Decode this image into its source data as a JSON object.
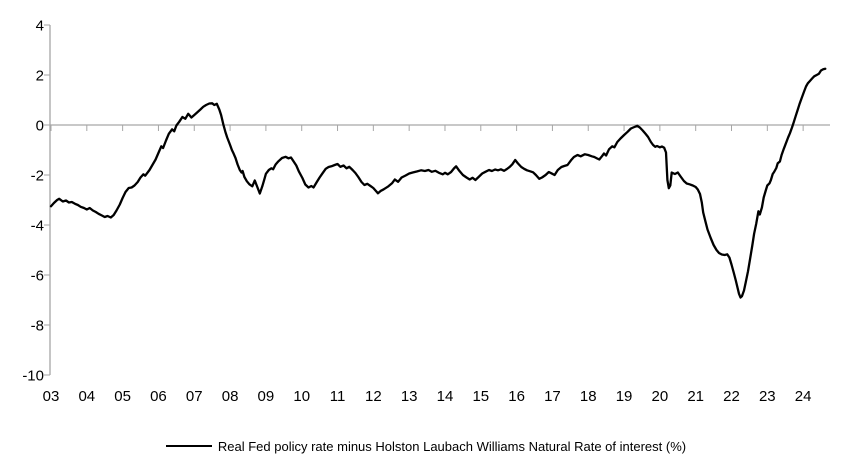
{
  "chart_data": {
    "type": "line",
    "title": "",
    "legend_position": "bottom",
    "grid": false,
    "zero_line": true,
    "colors": {
      "series": "#000000",
      "axis": "#a6a6a6",
      "tick_text": "#000000",
      "background": "#ffffff"
    },
    "x_axis": {
      "range": [
        2003,
        2024.75
      ],
      "tick_years": [
        2003,
        2004,
        2005,
        2006,
        2007,
        2008,
        2009,
        2010,
        2011,
        2012,
        2013,
        2014,
        2015,
        2016,
        2017,
        2018,
        2019,
        2020,
        2021,
        2022,
        2023,
        2024
      ],
      "tick_labels": [
        "03",
        "04",
        "05",
        "06",
        "07",
        "08",
        "09",
        "10",
        "11",
        "12",
        "13",
        "14",
        "15",
        "16",
        "17",
        "18",
        "19",
        "20",
        "21",
        "22",
        "23",
        "24"
      ]
    },
    "y_axis": {
      "range": [
        -10,
        4
      ],
      "tick_values": [
        4,
        2,
        0,
        -2,
        -4,
        -6,
        -8,
        -10
      ],
      "tick_labels": [
        "4",
        "2",
        "0",
        "-2",
        "-4",
        "-6",
        "-8",
        "-10"
      ]
    },
    "series": [
      {
        "name": "Real Fed policy rate minus Holston Laubach Williams Natural Rate of interest (%)",
        "color": "#000000",
        "points": [
          [
            2003.0,
            -3.25
          ],
          [
            2003.08,
            -3.12
          ],
          [
            2003.17,
            -3.0
          ],
          [
            2003.23,
            -2.95
          ],
          [
            2003.33,
            -3.06
          ],
          [
            2003.42,
            -3.02
          ],
          [
            2003.5,
            -3.1
          ],
          [
            2003.58,
            -3.08
          ],
          [
            2003.67,
            -3.15
          ],
          [
            2003.75,
            -3.2
          ],
          [
            2003.83,
            -3.27
          ],
          [
            2003.92,
            -3.32
          ],
          [
            2004.0,
            -3.38
          ],
          [
            2004.08,
            -3.32
          ],
          [
            2004.17,
            -3.42
          ],
          [
            2004.25,
            -3.48
          ],
          [
            2004.33,
            -3.55
          ],
          [
            2004.42,
            -3.62
          ],
          [
            2004.5,
            -3.68
          ],
          [
            2004.58,
            -3.64
          ],
          [
            2004.67,
            -3.7
          ],
          [
            2004.75,
            -3.6
          ],
          [
            2004.83,
            -3.42
          ],
          [
            2004.92,
            -3.18
          ],
          [
            2005.0,
            -2.92
          ],
          [
            2005.08,
            -2.68
          ],
          [
            2005.17,
            -2.52
          ],
          [
            2005.25,
            -2.5
          ],
          [
            2005.33,
            -2.42
          ],
          [
            2005.42,
            -2.28
          ],
          [
            2005.5,
            -2.1
          ],
          [
            2005.58,
            -1.97
          ],
          [
            2005.63,
            -2.03
          ],
          [
            2005.75,
            -1.8
          ],
          [
            2005.83,
            -1.6
          ],
          [
            2005.92,
            -1.38
          ],
          [
            2006.0,
            -1.12
          ],
          [
            2006.08,
            -0.85
          ],
          [
            2006.13,
            -0.92
          ],
          [
            2006.21,
            -0.62
          ],
          [
            2006.29,
            -0.35
          ],
          [
            2006.38,
            -0.17
          ],
          [
            2006.44,
            -0.25
          ],
          [
            2006.5,
            -0.02
          ],
          [
            2006.58,
            0.13
          ],
          [
            2006.67,
            0.32
          ],
          [
            2006.75,
            0.25
          ],
          [
            2006.83,
            0.45
          ],
          [
            2006.92,
            0.3
          ],
          [
            2007.0,
            0.4
          ],
          [
            2007.08,
            0.5
          ],
          [
            2007.17,
            0.62
          ],
          [
            2007.25,
            0.73
          ],
          [
            2007.33,
            0.8
          ],
          [
            2007.42,
            0.86
          ],
          [
            2007.5,
            0.87
          ],
          [
            2007.56,
            0.8
          ],
          [
            2007.63,
            0.85
          ],
          [
            2007.7,
            0.62
          ],
          [
            2007.75,
            0.4
          ],
          [
            2007.81,
            0.03
          ],
          [
            2007.87,
            -0.28
          ],
          [
            2007.92,
            -0.5
          ],
          [
            2008.0,
            -0.8
          ],
          [
            2008.05,
            -1.0
          ],
          [
            2008.1,
            -1.15
          ],
          [
            2008.15,
            -1.32
          ],
          [
            2008.21,
            -1.58
          ],
          [
            2008.27,
            -1.8
          ],
          [
            2008.32,
            -1.9
          ],
          [
            2008.35,
            -1.84
          ],
          [
            2008.4,
            -2.08
          ],
          [
            2008.47,
            -2.25
          ],
          [
            2008.54,
            -2.37
          ],
          [
            2008.62,
            -2.45
          ],
          [
            2008.69,
            -2.22
          ],
          [
            2008.76,
            -2.48
          ],
          [
            2008.83,
            -2.74
          ],
          [
            2008.9,
            -2.45
          ],
          [
            2008.96,
            -2.15
          ],
          [
            2009.0,
            -1.95
          ],
          [
            2009.08,
            -1.8
          ],
          [
            2009.15,
            -1.73
          ],
          [
            2009.2,
            -1.77
          ],
          [
            2009.27,
            -1.58
          ],
          [
            2009.35,
            -1.45
          ],
          [
            2009.45,
            -1.32
          ],
          [
            2009.55,
            -1.27
          ],
          [
            2009.63,
            -1.33
          ],
          [
            2009.7,
            -1.3
          ],
          [
            2009.77,
            -1.45
          ],
          [
            2009.85,
            -1.62
          ],
          [
            2009.92,
            -1.85
          ],
          [
            2010.02,
            -2.12
          ],
          [
            2010.1,
            -2.38
          ],
          [
            2010.19,
            -2.5
          ],
          [
            2010.27,
            -2.44
          ],
          [
            2010.33,
            -2.5
          ],
          [
            2010.42,
            -2.28
          ],
          [
            2010.5,
            -2.1
          ],
          [
            2010.58,
            -1.93
          ],
          [
            2010.67,
            -1.75
          ],
          [
            2010.75,
            -1.68
          ],
          [
            2010.83,
            -1.65
          ],
          [
            2010.92,
            -1.6
          ],
          [
            2011.0,
            -1.56
          ],
          [
            2011.08,
            -1.67
          ],
          [
            2011.17,
            -1.62
          ],
          [
            2011.25,
            -1.73
          ],
          [
            2011.33,
            -1.67
          ],
          [
            2011.42,
            -1.8
          ],
          [
            2011.5,
            -1.92
          ],
          [
            2011.58,
            -2.08
          ],
          [
            2011.67,
            -2.28
          ],
          [
            2011.75,
            -2.4
          ],
          [
            2011.83,
            -2.35
          ],
          [
            2011.92,
            -2.44
          ],
          [
            2012.0,
            -2.52
          ],
          [
            2012.06,
            -2.62
          ],
          [
            2012.13,
            -2.73
          ],
          [
            2012.21,
            -2.63
          ],
          [
            2012.29,
            -2.57
          ],
          [
            2012.42,
            -2.45
          ],
          [
            2012.52,
            -2.33
          ],
          [
            2012.6,
            -2.18
          ],
          [
            2012.69,
            -2.27
          ],
          [
            2012.79,
            -2.1
          ],
          [
            2012.9,
            -2.02
          ],
          [
            2013.0,
            -1.94
          ],
          [
            2013.1,
            -1.9
          ],
          [
            2013.21,
            -1.86
          ],
          [
            2013.33,
            -1.81
          ],
          [
            2013.44,
            -1.84
          ],
          [
            2013.54,
            -1.8
          ],
          [
            2013.63,
            -1.87
          ],
          [
            2013.73,
            -1.83
          ],
          [
            2013.83,
            -1.91
          ],
          [
            2013.94,
            -1.97
          ],
          [
            2014.0,
            -1.91
          ],
          [
            2014.08,
            -1.97
          ],
          [
            2014.17,
            -1.88
          ],
          [
            2014.25,
            -1.74
          ],
          [
            2014.31,
            -1.65
          ],
          [
            2014.4,
            -1.83
          ],
          [
            2014.5,
            -2.0
          ],
          [
            2014.6,
            -2.1
          ],
          [
            2014.69,
            -2.18
          ],
          [
            2014.77,
            -2.11
          ],
          [
            2014.85,
            -2.2
          ],
          [
            2014.94,
            -2.08
          ],
          [
            2015.04,
            -1.94
          ],
          [
            2015.13,
            -1.87
          ],
          [
            2015.23,
            -1.8
          ],
          [
            2015.31,
            -1.84
          ],
          [
            2015.4,
            -1.78
          ],
          [
            2015.48,
            -1.81
          ],
          [
            2015.56,
            -1.77
          ],
          [
            2015.65,
            -1.83
          ],
          [
            2015.73,
            -1.76
          ],
          [
            2015.81,
            -1.67
          ],
          [
            2015.88,
            -1.57
          ],
          [
            2015.96,
            -1.4
          ],
          [
            2016.04,
            -1.54
          ],
          [
            2016.13,
            -1.68
          ],
          [
            2016.21,
            -1.75
          ],
          [
            2016.29,
            -1.81
          ],
          [
            2016.38,
            -1.85
          ],
          [
            2016.46,
            -1.89
          ],
          [
            2016.54,
            -2.0
          ],
          [
            2016.63,
            -2.15
          ],
          [
            2016.71,
            -2.1
          ],
          [
            2016.81,
            -2.0
          ],
          [
            2016.9,
            -1.88
          ],
          [
            2016.97,
            -1.93
          ],
          [
            2017.06,
            -2.0
          ],
          [
            2017.15,
            -1.8
          ],
          [
            2017.25,
            -1.68
          ],
          [
            2017.33,
            -1.64
          ],
          [
            2017.42,
            -1.6
          ],
          [
            2017.52,
            -1.41
          ],
          [
            2017.6,
            -1.28
          ],
          [
            2017.7,
            -1.2
          ],
          [
            2017.79,
            -1.25
          ],
          [
            2017.9,
            -1.17
          ],
          [
            2018.0,
            -1.2
          ],
          [
            2018.1,
            -1.25
          ],
          [
            2018.17,
            -1.28
          ],
          [
            2018.25,
            -1.34
          ],
          [
            2018.31,
            -1.38
          ],
          [
            2018.38,
            -1.25
          ],
          [
            2018.44,
            -1.14
          ],
          [
            2018.5,
            -1.22
          ],
          [
            2018.58,
            -0.97
          ],
          [
            2018.67,
            -0.85
          ],
          [
            2018.73,
            -0.89
          ],
          [
            2018.81,
            -0.68
          ],
          [
            2018.9,
            -0.54
          ],
          [
            2019.0,
            -0.4
          ],
          [
            2019.1,
            -0.27
          ],
          [
            2019.19,
            -0.14
          ],
          [
            2019.29,
            -0.08
          ],
          [
            2019.37,
            -0.03
          ],
          [
            2019.44,
            -0.1
          ],
          [
            2019.52,
            -0.22
          ],
          [
            2019.6,
            -0.35
          ],
          [
            2019.67,
            -0.48
          ],
          [
            2019.75,
            -0.68
          ],
          [
            2019.81,
            -0.8
          ],
          [
            2019.87,
            -0.87
          ],
          [
            2019.92,
            -0.84
          ],
          [
            2020.0,
            -0.89
          ],
          [
            2020.06,
            -0.86
          ],
          [
            2020.12,
            -0.91
          ],
          [
            2020.17,
            -1.1
          ],
          [
            2020.21,
            -2.2
          ],
          [
            2020.25,
            -2.53
          ],
          [
            2020.29,
            -2.42
          ],
          [
            2020.33,
            -1.9
          ],
          [
            2020.42,
            -1.96
          ],
          [
            2020.5,
            -1.9
          ],
          [
            2020.58,
            -2.06
          ],
          [
            2020.67,
            -2.24
          ],
          [
            2020.75,
            -2.34
          ],
          [
            2020.83,
            -2.37
          ],
          [
            2020.92,
            -2.42
          ],
          [
            2021.0,
            -2.48
          ],
          [
            2021.06,
            -2.58
          ],
          [
            2021.12,
            -2.76
          ],
          [
            2021.17,
            -3.1
          ],
          [
            2021.21,
            -3.5
          ],
          [
            2021.27,
            -3.85
          ],
          [
            2021.33,
            -4.18
          ],
          [
            2021.42,
            -4.52
          ],
          [
            2021.5,
            -4.8
          ],
          [
            2021.58,
            -5.0
          ],
          [
            2021.65,
            -5.12
          ],
          [
            2021.73,
            -5.18
          ],
          [
            2021.81,
            -5.2
          ],
          [
            2021.88,
            -5.17
          ],
          [
            2021.94,
            -5.3
          ],
          [
            2022.0,
            -5.58
          ],
          [
            2022.06,
            -5.9
          ],
          [
            2022.12,
            -6.22
          ],
          [
            2022.17,
            -6.52
          ],
          [
            2022.21,
            -6.75
          ],
          [
            2022.25,
            -6.9
          ],
          [
            2022.29,
            -6.85
          ],
          [
            2022.35,
            -6.62
          ],
          [
            2022.4,
            -6.28
          ],
          [
            2022.46,
            -5.85
          ],
          [
            2022.52,
            -5.35
          ],
          [
            2022.58,
            -4.82
          ],
          [
            2022.63,
            -4.35
          ],
          [
            2022.69,
            -3.95
          ],
          [
            2022.75,
            -3.45
          ],
          [
            2022.79,
            -3.58
          ],
          [
            2022.85,
            -3.3
          ],
          [
            2022.9,
            -2.9
          ],
          [
            2022.96,
            -2.6
          ],
          [
            2023.0,
            -2.42
          ],
          [
            2023.06,
            -2.33
          ],
          [
            2023.1,
            -2.2
          ],
          [
            2023.15,
            -1.96
          ],
          [
            2023.19,
            -1.88
          ],
          [
            2023.25,
            -1.72
          ],
          [
            2023.29,
            -1.53
          ],
          [
            2023.35,
            -1.46
          ],
          [
            2023.4,
            -1.2
          ],
          [
            2023.46,
            -0.95
          ],
          [
            2023.52,
            -0.73
          ],
          [
            2023.58,
            -0.5
          ],
          [
            2023.63,
            -0.33
          ],
          [
            2023.69,
            -0.1
          ],
          [
            2023.73,
            0.08
          ],
          [
            2023.79,
            0.35
          ],
          [
            2023.85,
            0.62
          ],
          [
            2023.9,
            0.85
          ],
          [
            2023.96,
            1.08
          ],
          [
            2024.02,
            1.32
          ],
          [
            2024.08,
            1.54
          ],
          [
            2024.13,
            1.67
          ],
          [
            2024.19,
            1.76
          ],
          [
            2024.25,
            1.86
          ],
          [
            2024.31,
            1.95
          ],
          [
            2024.38,
            2.0
          ],
          [
            2024.44,
            2.05
          ],
          [
            2024.5,
            2.18
          ],
          [
            2024.56,
            2.23
          ],
          [
            2024.62,
            2.25
          ]
        ]
      }
    ]
  }
}
